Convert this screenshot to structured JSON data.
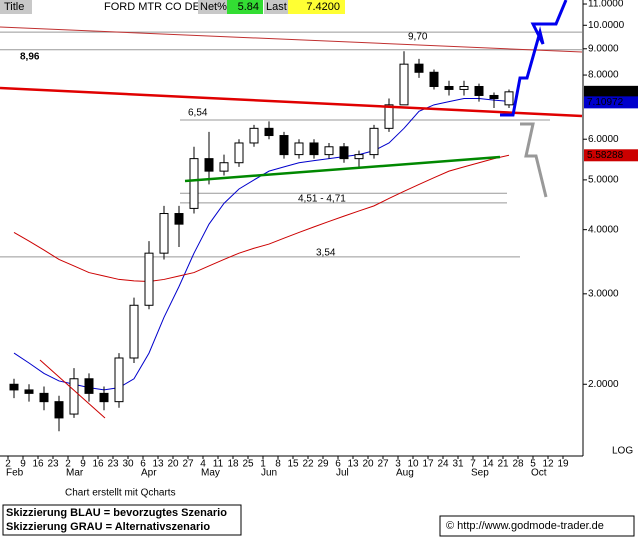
{
  "header": {
    "title_label": "Title",
    "symbol": "FORD MTR CO DEL",
    "net_label": "Net%",
    "net": 5.84,
    "last_label": "Last",
    "last": "7.4200"
  },
  "chart_data": {
    "type": "candlestick",
    "log_scale": true,
    "categories": [
      "2",
      "9",
      "16",
      "23",
      "2",
      "9",
      "16",
      "23",
      "30",
      "6",
      "13",
      "20",
      "27",
      "4",
      "11",
      "18",
      "25",
      "1",
      "8",
      "15",
      "22",
      "29",
      "6",
      "13",
      "20",
      "27",
      "3",
      "10",
      "17",
      "24",
      "31",
      "7",
      "14",
      "21",
      "28",
      "5",
      "12",
      "19"
    ],
    "months": [
      "Feb",
      "Mar",
      "Apr",
      "May",
      "Jun",
      "Jul",
      "Aug",
      "Sep",
      "Oct"
    ],
    "month_starts": [
      0,
      4,
      9,
      13,
      17,
      22,
      26,
      31,
      35
    ],
    "open": [
      2.0,
      1.95,
      1.92,
      1.85,
      1.75,
      2.05,
      1.92,
      1.85,
      2.25,
      2.85,
      3.6,
      4.3,
      4.4,
      5.5,
      5.2,
      5.4,
      5.9,
      6.3,
      6.1,
      5.6,
      5.9,
      5.6,
      5.8,
      5.5,
      5.6,
      6.3,
      7.0,
      8.4,
      8.1,
      7.6,
      7.5,
      7.6,
      7.3,
      7.0,
      null,
      null,
      null,
      null
    ],
    "high": [
      2.05,
      2.0,
      1.98,
      1.9,
      2.15,
      2.1,
      1.98,
      2.3,
      2.95,
      3.8,
      4.45,
      4.45,
      5.8,
      6.2,
      5.6,
      6.0,
      6.4,
      6.5,
      6.2,
      6.0,
      6.0,
      5.9,
      5.9,
      5.7,
      6.4,
      7.2,
      8.9,
      8.6,
      8.2,
      7.8,
      7.8,
      7.7,
      7.4,
      7.5,
      null,
      null,
      null,
      null
    ],
    "low": [
      1.88,
      1.85,
      1.78,
      1.62,
      1.72,
      1.85,
      1.78,
      1.8,
      2.2,
      2.8,
      3.5,
      3.7,
      4.3,
      4.9,
      5.1,
      5.3,
      5.8,
      6.0,
      5.5,
      5.5,
      5.5,
      5.5,
      5.4,
      5.3,
      5.5,
      6.2,
      7.0,
      7.9,
      7.5,
      7.3,
      7.3,
      7.1,
      6.9,
      6.9,
      null,
      null,
      null,
      null
    ],
    "close": [
      1.95,
      1.92,
      1.85,
      1.72,
      2.05,
      1.92,
      1.85,
      2.25,
      2.85,
      3.6,
      4.3,
      4.1,
      5.5,
      5.2,
      5.4,
      5.9,
      6.3,
      6.1,
      5.6,
      5.9,
      5.6,
      5.8,
      5.5,
      5.6,
      6.3,
      7.0,
      8.4,
      8.1,
      7.6,
      7.5,
      7.6,
      7.3,
      7.2,
      7.42,
      null,
      null,
      null,
      null
    ],
    "series": [
      {
        "color": "#0000cc",
        "values": [
          2.3,
          2.2,
          2.1,
          2.03,
          2.0,
          1.97,
          1.95,
          1.97,
          2.05,
          2.3,
          2.7,
          3.1,
          3.6,
          4.1,
          4.5,
          4.8,
          5.0,
          5.2,
          5.3,
          5.4,
          5.45,
          5.5,
          5.55,
          5.6,
          5.7,
          5.9,
          6.3,
          6.8,
          7.0,
          7.1,
          7.2,
          7.2,
          7.15,
          7.10972,
          null,
          null,
          null,
          null
        ]
      },
      {
        "color": "#cc0000",
        "values": [
          3.95,
          3.8,
          3.65,
          3.5,
          3.4,
          3.3,
          3.25,
          3.2,
          3.18,
          3.17,
          3.2,
          3.25,
          3.3,
          3.4,
          3.5,
          3.6,
          3.68,
          3.75,
          3.85,
          3.95,
          4.05,
          4.15,
          4.25,
          4.35,
          4.45,
          4.6,
          4.75,
          4.9,
          5.05,
          5.2,
          5.3,
          5.4,
          5.5,
          5.58288,
          null,
          null,
          null,
          null
        ]
      }
    ],
    "levels": [
      {
        "values": [
          9.7
        ],
        "label": "9,70"
      },
      {
        "values": [
          8.96
        ],
        "label": "8,96"
      },
      {
        "values": [
          6.54
        ],
        "label": "6,54"
      },
      {
        "values": [
          4.51,
          4.71
        ],
        "label": "4,51 - 4,71"
      },
      {
        "values": [
          3.54
        ],
        "label": "3,54"
      }
    ],
    "ylim": [
      1.45,
      11.2
    ],
    "yticks": [
      {
        "value": 2,
        "label": "2.0000"
      },
      {
        "value": 3,
        "label": "3.0000"
      },
      {
        "value": 4,
        "label": "4.0000"
      },
      {
        "value": 5,
        "label": "5.0000"
      },
      {
        "value": 6,
        "label": "6.0000"
      },
      {
        "value": 8,
        "label": "8.0000"
      },
      {
        "value": 9,
        "label": "9.0000"
      },
      {
        "value": 10,
        "label": "10.0000"
      },
      {
        "value": 11,
        "label": "11.0000"
      }
    ],
    "scale_label": "LOG"
  },
  "footer": {
    "credit": "Chart erstellt mit Qcharts",
    "legend": [
      "Skizzierung BLAU = bevorzugtes Szenario",
      "Skizzierung GRAU = Alternativszenario"
    ],
    "source": "© http://www.godmode-trader.de"
  }
}
